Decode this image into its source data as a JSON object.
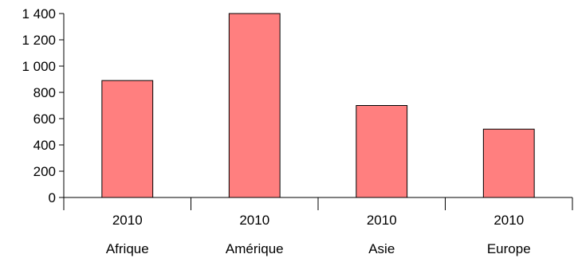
{
  "chart_data": {
    "type": "bar",
    "title": "",
    "xlabel": "",
    "ylabel": "",
    "categories": [
      "Afrique",
      "Amérique",
      "Asie",
      "Europe"
    ],
    "group_labels": [
      "2010",
      "2010",
      "2010",
      "2010"
    ],
    "values": [
      890,
      1400,
      700,
      520
    ],
    "ylim": [
      0,
      1400
    ],
    "yticks": [
      0,
      200,
      400,
      600,
      800,
      1000,
      1200,
      1400
    ],
    "ytick_labels": [
      "0",
      "200",
      "400",
      "600",
      "800",
      "1 000",
      "1 200",
      "1 400"
    ],
    "bar_color": "#ff7f7f",
    "grid": false,
    "legend": "none"
  }
}
